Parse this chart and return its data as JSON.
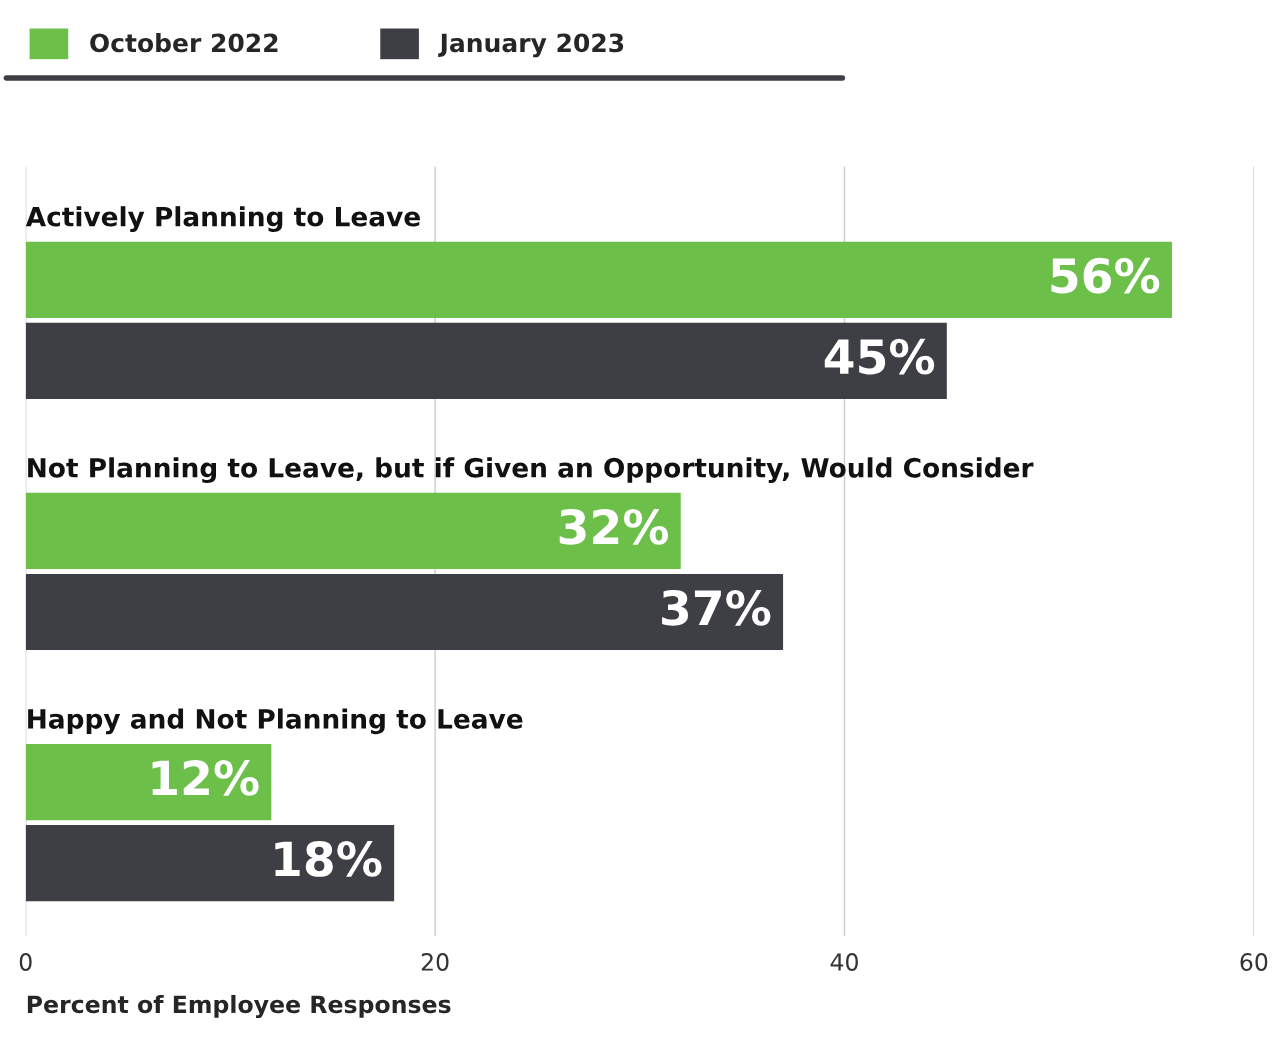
{
  "chart_data": {
    "type": "bar",
    "orientation": "horizontal",
    "categories": [
      "Actively Planning to Leave",
      "Not Planning to Leave, but if Given an Opportunity, Would Consider",
      "Happy and Not Planning to Leave"
    ],
    "series": [
      {
        "name": "October 2022",
        "color": "#6cc04a",
        "values": [
          56,
          32,
          12
        ],
        "value_labels": [
          "56%",
          "32%",
          "12%"
        ]
      },
      {
        "name": "January 2023",
        "color": "#3d3f45",
        "values": [
          45,
          37,
          18
        ],
        "value_labels": [
          "45%",
          "37%",
          "18%"
        ]
      }
    ],
    "xlabel": "Percent of Employee Responses",
    "xlim": [
      0,
      60
    ],
    "xticks": [
      0,
      20,
      40,
      60
    ],
    "grid": "x",
    "legend": "top left"
  }
}
